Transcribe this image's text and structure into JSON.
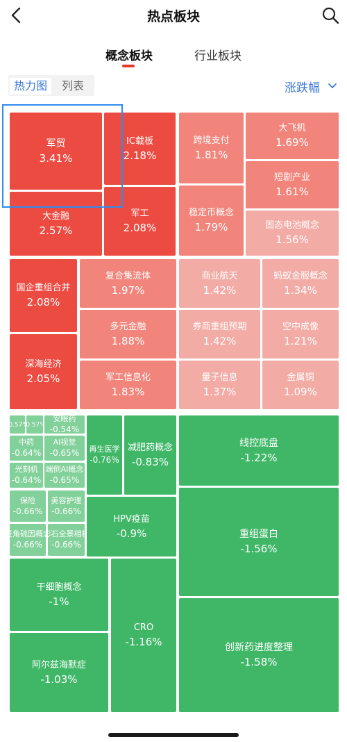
{
  "header": {
    "title": "热点板块"
  },
  "tabs": [
    {
      "label": "概念板块"
    },
    {
      "label": "行业板块"
    }
  ],
  "view_toggle": {
    "heatmap": "热力图",
    "list": "列表"
  },
  "sort": {
    "label": "涨跌幅"
  },
  "colors": {
    "accent": "#e43a2c",
    "link": "#3a78d8",
    "selection": "#2e8cf0"
  },
  "tiles": [
    {
      "name": "军贸",
      "pct": "3.41%",
      "color": "#ec4b42"
    },
    {
      "name": "IC载板",
      "pct": "2.18%",
      "color": "#ec4b42"
    },
    {
      "name": "大金融",
      "pct": "2.57%",
      "color": "#ec4b42"
    },
    {
      "name": "军工",
      "pct": "2.08%",
      "color": "#ec4b42"
    },
    {
      "name": "跨境支付",
      "pct": "1.81%",
      "color": "#f1847b"
    },
    {
      "name": "稳定币概念",
      "pct": "1.79%",
      "color": "#f1847b"
    },
    {
      "name": "大飞机",
      "pct": "1.69%",
      "color": "#f1847b"
    },
    {
      "name": "短剧产业",
      "pct": "1.61%",
      "color": "#f1847b"
    },
    {
      "name": "固态电池概念",
      "pct": "1.56%",
      "color": "#f3aba5"
    },
    {
      "name": "国企重组合并",
      "pct": "2.08%",
      "color": "#ec4b42"
    },
    {
      "name": "深海经济",
      "pct": "2.05%",
      "color": "#ec4b42"
    },
    {
      "name": "复合集流体",
      "pct": "1.97%",
      "color": "#f1847b"
    },
    {
      "name": "多元金融",
      "pct": "1.88%",
      "color": "#f1847b"
    },
    {
      "name": "军工信息化",
      "pct": "1.83%",
      "color": "#f1847b"
    },
    {
      "name": "商业航天",
      "pct": "1.42%",
      "color": "#f3aba5"
    },
    {
      "name": "券商重组预期",
      "pct": "1.42%",
      "color": "#f3aba5"
    },
    {
      "name": "量子信息",
      "pct": "1.37%",
      "color": "#f3aba5"
    },
    {
      "name": "蚂蚁金服概念",
      "pct": "1.34%",
      "color": "#f3aba5"
    },
    {
      "name": "空中成像",
      "pct": "1.21%",
      "color": "#f3aba5"
    },
    {
      "name": "金属铜",
      "pct": "1.09%",
      "color": "#f3aba5"
    },
    {
      "name": "",
      "pct": "-0.57%",
      "color": "#82d09a"
    },
    {
      "name": "",
      "pct": "-0.57%",
      "color": "#82d09a"
    },
    {
      "name": "安眠药",
      "pct": "-0.54%",
      "color": "#82d09a"
    },
    {
      "name": "中药",
      "pct": "-0.64%",
      "color": "#82d09a"
    },
    {
      "name": "AI视觉",
      "pct": "-0.65%",
      "color": "#82d09a"
    },
    {
      "name": "光刻机",
      "pct": "-0.64%",
      "color": "#82d09a"
    },
    {
      "name": "端侧AI概念",
      "pct": "-0.65%",
      "color": "#82d09a"
    },
    {
      "name": "保险",
      "pct": "-0.66%",
      "color": "#82d09a"
    },
    {
      "name": "美容护理",
      "pct": "-0.66%",
      "color": "#82d09a"
    },
    {
      "name": "麦角硫因概念",
      "pct": "-0.66%",
      "color": "#82d09a"
    },
    {
      "name": "影石全景相机",
      "pct": "-0.66%",
      "color": "#82d09a"
    },
    {
      "name": "再生医学",
      "pct": "-0.76%",
      "color": "#3fb767"
    },
    {
      "name": "减肥药概念",
      "pct": "-0.83%",
      "color": "#3fb767"
    },
    {
      "name": "HPV疫苗",
      "pct": "-0.9%",
      "color": "#3fb767"
    },
    {
      "name": "线控底盘",
      "pct": "-1.22%",
      "color": "#3fb767"
    },
    {
      "name": "重组蛋白",
      "pct": "-1.56%",
      "color": "#3fb767"
    },
    {
      "name": "干细胞概念",
      "pct": "-1%",
      "color": "#3fb767"
    },
    {
      "name": "CRO",
      "pct": "-1.16%",
      "color": "#3fb767"
    },
    {
      "name": "阿尔兹海默症",
      "pct": "-1.03%",
      "color": "#3fb767"
    },
    {
      "name": "创新药进度整理",
      "pct": "-1.58%",
      "color": "#3fb767"
    }
  ]
}
